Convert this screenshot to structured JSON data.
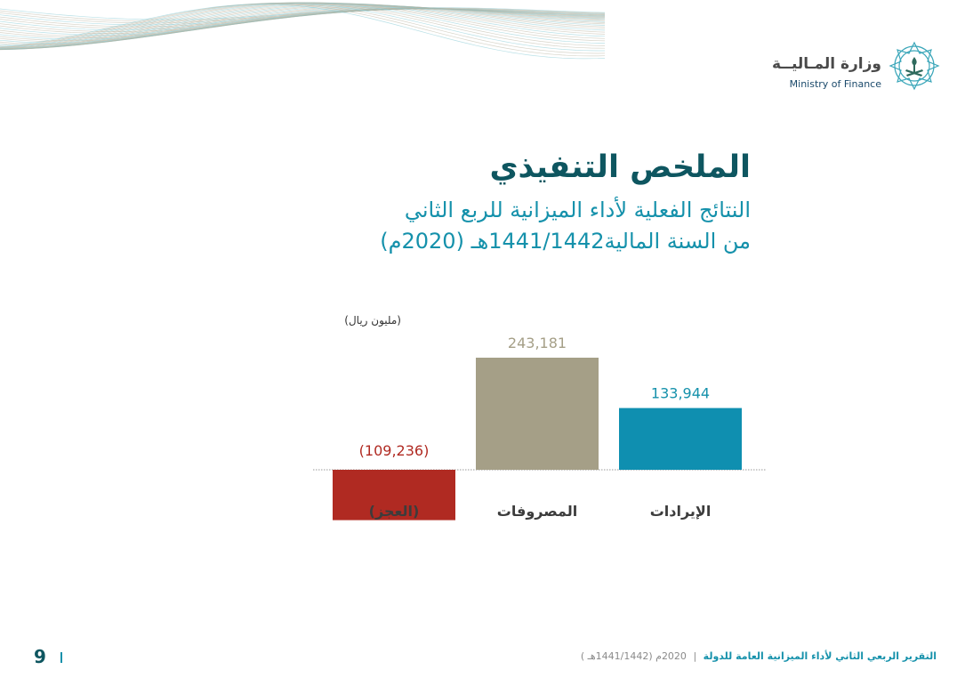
{
  "logo": {
    "arabic": "وزارة المـاليــة",
    "english": "Ministry of Finance"
  },
  "header": {
    "title": "الملخص التنفيذي",
    "subtitle_line1": "النتائج الفعلية لأداء الميزانية للربع الثاني",
    "subtitle_line2": "من السنة المالية1441/1442هـ (2020م)"
  },
  "chart_data": {
    "type": "bar",
    "unit_label": "(مليون ريال)",
    "categories": [
      "الإيرادات",
      "المصروفات",
      "(العجز)"
    ],
    "values": [
      133944,
      243181,
      -109236
    ],
    "value_labels": [
      "133,944",
      "243,181",
      "(109,236)"
    ],
    "colors": [
      "#0f8fb0",
      "#a59f87",
      "#b02a22"
    ],
    "label_colors": [
      "#1591ab",
      "#a59f87",
      "#b02a22"
    ]
  },
  "footer": {
    "report_title": "التقرير الربعي الثاني لأداء الميزانية العامة للدولة",
    "separator": "|",
    "date": "2020م (1441/1442هـ )",
    "page_number": "9"
  },
  "colors": {
    "primary_dark": "#0e5660",
    "primary": "#1591ab",
    "wave": "#b7b19c"
  }
}
